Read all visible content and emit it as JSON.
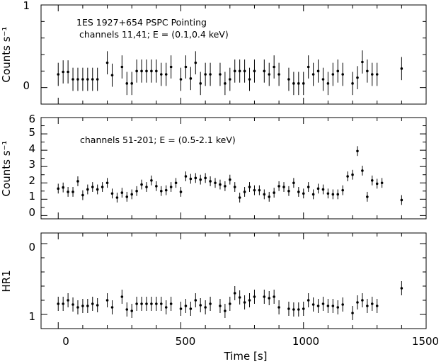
{
  "chart_data": [
    {
      "type": "scatter",
      "title": "1ES 1927+654 PSPC Pointing",
      "annotation": "channels 11,41; E = (0.1,0.4 keV)",
      "ylabel": "Counts s⁻¹",
      "xlim": [
        -70,
        1500
      ],
      "ylim": [
        -0.2,
        1.0
      ],
      "yticks": [
        "0",
        "1"
      ],
      "grid": false,
      "series": [
        {
          "x": [
            0,
            20,
            40,
            60,
            80,
            100,
            120,
            140,
            160,
            200,
            220,
            260,
            280,
            300,
            320,
            340,
            360,
            380,
            400,
            420,
            440,
            460,
            500,
            520,
            540,
            560,
            580,
            600,
            620,
            660,
            680,
            700,
            720,
            740,
            760,
            780,
            800,
            840,
            860,
            880,
            900,
            940,
            960,
            980,
            1000,
            1020,
            1040,
            1060,
            1080,
            1100,
            1120,
            1140,
            1160,
            1200,
            1220,
            1240,
            1260,
            1280,
            1300,
            1400
          ],
          "y": [
            0.16,
            0.19,
            0.19,
            0.1,
            0.1,
            0.1,
            0.1,
            0.1,
            0.1,
            0.3,
            0.15,
            0.25,
            0.05,
            0.05,
            0.2,
            0.2,
            0.2,
            0.2,
            0.2,
            0.16,
            0.16,
            0.25,
            0.1,
            0.25,
            0.11,
            0.3,
            0.05,
            0.16,
            0.16,
            0.16,
            0.05,
            0.1,
            0.2,
            0.2,
            0.2,
            0.1,
            0.2,
            0.2,
            0.16,
            0.25,
            0.16,
            0.1,
            0.05,
            0.05,
            0.05,
            0.25,
            0.16,
            0.2,
            0.1,
            0.05,
            0.16,
            0.2,
            0.16,
            0.05,
            0.12,
            0.31,
            0.2,
            0.16,
            0.16,
            0.23
          ],
          "yerr": 0.14
        }
      ]
    },
    {
      "type": "scatter",
      "annotation": "channels 51-201; E = (0.5-2.1 keV)",
      "ylabel": "Counts s⁻¹",
      "xlim": [
        -70,
        1500
      ],
      "ylim": [
        -0.2,
        6.0
      ],
      "yticks": [
        "0",
        "1",
        "2",
        "3",
        "4",
        "5",
        "6"
      ],
      "grid": false,
      "series": [
        {
          "x": [
            0,
            20,
            40,
            60,
            80,
            100,
            120,
            140,
            160,
            180,
            200,
            220,
            240,
            260,
            280,
            300,
            320,
            340,
            360,
            380,
            400,
            420,
            440,
            460,
            480,
            500,
            520,
            540,
            560,
            580,
            600,
            620,
            640,
            660,
            680,
            700,
            720,
            740,
            760,
            780,
            800,
            820,
            840,
            860,
            880,
            900,
            920,
            940,
            960,
            980,
            1000,
            1020,
            1040,
            1060,
            1080,
            1100,
            1120,
            1140,
            1160,
            1180,
            1200,
            1220,
            1240,
            1260,
            1280,
            1300,
            1320,
            1400
          ],
          "y": [
            1.65,
            1.72,
            1.45,
            1.45,
            2.1,
            1.25,
            1.6,
            1.75,
            1.6,
            1.75,
            2.0,
            1.35,
            1.1,
            1.4,
            1.15,
            1.3,
            1.5,
            1.9,
            1.75,
            2.15,
            1.8,
            1.5,
            1.55,
            1.75,
            2.0,
            1.45,
            2.4,
            2.25,
            2.3,
            2.2,
            2.3,
            2.1,
            2.0,
            1.9,
            1.8,
            2.2,
            1.75,
            1.1,
            1.45,
            1.75,
            1.55,
            1.55,
            1.3,
            1.15,
            1.4,
            1.8,
            1.75,
            1.5,
            2.0,
            1.45,
            1.35,
            1.75,
            1.3,
            1.65,
            1.6,
            1.35,
            1.3,
            1.3,
            1.55,
            2.4,
            2.5,
            3.95,
            2.75,
            1.15,
            2.15,
            1.95,
            2.0,
            0.95
          ],
          "yerr": 0.3
        }
      ]
    },
    {
      "type": "scatter",
      "ylabel": "HR1",
      "xlabel": "Time [s]",
      "xlim": [
        -70,
        1500
      ],
      "ylim": [
        -0.15,
        1.2
      ],
      "y_inverted": true,
      "yticks": [
        "0",
        "1"
      ],
      "xticks": [
        "0",
        "500",
        "1000",
        "1500"
      ],
      "grid": false,
      "series": [
        {
          "x": [
            0,
            20,
            40,
            60,
            80,
            100,
            120,
            140,
            160,
            200,
            220,
            260,
            280,
            300,
            320,
            340,
            360,
            380,
            400,
            420,
            440,
            460,
            500,
            520,
            540,
            560,
            580,
            600,
            620,
            660,
            680,
            700,
            720,
            740,
            760,
            780,
            800,
            840,
            860,
            880,
            900,
            940,
            960,
            980,
            1000,
            1020,
            1040,
            1060,
            1080,
            1100,
            1120,
            1140,
            1160,
            1200,
            1220,
            1240,
            1260,
            1280,
            1300,
            1400
          ],
          "y": [
            0.85,
            0.85,
            0.8,
            0.86,
            0.9,
            0.88,
            0.88,
            0.85,
            0.87,
            0.8,
            0.9,
            0.75,
            0.93,
            0.95,
            0.85,
            0.85,
            0.85,
            0.85,
            0.85,
            0.85,
            0.9,
            0.85,
            0.92,
            0.88,
            0.92,
            0.8,
            0.87,
            0.9,
            0.85,
            0.88,
            0.95,
            0.85,
            0.7,
            0.76,
            0.83,
            0.8,
            0.75,
            0.75,
            0.77,
            0.75,
            0.9,
            0.92,
            0.93,
            0.93,
            0.92,
            0.8,
            0.86,
            0.88,
            0.85,
            0.88,
            0.88,
            0.9,
            0.86,
            0.98,
            0.83,
            0.8,
            0.88,
            0.85,
            0.88,
            0.63
          ],
          "yerr": 0.1
        }
      ]
    }
  ]
}
